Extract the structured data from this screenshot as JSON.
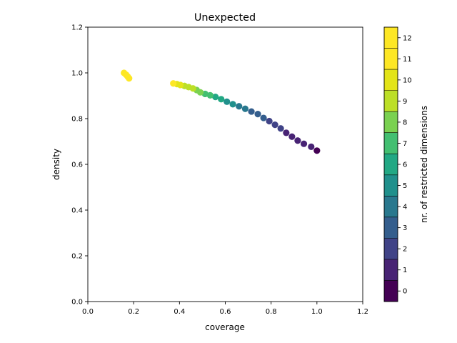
{
  "chart_data": {
    "type": "scatter",
    "title": "Unexpected",
    "xlabel": "coverage",
    "ylabel": "density",
    "xlim": [
      0.0,
      1.2
    ],
    "ylim": [
      0.0,
      1.2
    ],
    "xticks": [
      "0.0",
      "0.2",
      "0.4",
      "0.6",
      "0.8",
      "1.0",
      "1.2"
    ],
    "yticks": [
      "0.0",
      "0.2",
      "0.4",
      "0.6",
      "0.8",
      "1.0",
      "1.2"
    ],
    "grid": false,
    "colorbar": {
      "label": "nr. of restricted dimensions",
      "ticks": [
        "0",
        "1",
        "2",
        "3",
        "4",
        "5",
        "6",
        "7",
        "8",
        "9",
        "10",
        "11",
        "12"
      ],
      "colormap": "viridis",
      "colors": [
        "#440154",
        "#482374",
        "#404387",
        "#345e8d",
        "#29788e",
        "#20908c",
        "#22a884",
        "#43bf71",
        "#7ad151",
        "#bcdf27",
        "#e3e418",
        "#fde725",
        "#fde725"
      ]
    },
    "points": [
      {
        "x": 1.0,
        "y": 0.66,
        "dims": 0
      },
      {
        "x": 0.975,
        "y": 0.677,
        "dims": 1
      },
      {
        "x": 0.943,
        "y": 0.69,
        "dims": 1
      },
      {
        "x": 0.916,
        "y": 0.704,
        "dims": 1
      },
      {
        "x": 0.891,
        "y": 0.721,
        "dims": 1
      },
      {
        "x": 0.866,
        "y": 0.738,
        "dims": 1
      },
      {
        "x": 0.842,
        "y": 0.757,
        "dims": 2
      },
      {
        "x": 0.817,
        "y": 0.773,
        "dims": 2
      },
      {
        "x": 0.792,
        "y": 0.789,
        "dims": 2
      },
      {
        "x": 0.767,
        "y": 0.803,
        "dims": 3
      },
      {
        "x": 0.742,
        "y": 0.82,
        "dims": 3
      },
      {
        "x": 0.714,
        "y": 0.831,
        "dims": 3
      },
      {
        "x": 0.687,
        "y": 0.843,
        "dims": 4
      },
      {
        "x": 0.66,
        "y": 0.854,
        "dims": 4
      },
      {
        "x": 0.633,
        "y": 0.863,
        "dims": 5
      },
      {
        "x": 0.607,
        "y": 0.874,
        "dims": 5
      },
      {
        "x": 0.582,
        "y": 0.885,
        "dims": 6
      },
      {
        "x": 0.557,
        "y": 0.895,
        "dims": 6
      },
      {
        "x": 0.534,
        "y": 0.902,
        "dims": 7
      },
      {
        "x": 0.512,
        "y": 0.908,
        "dims": 7
      },
      {
        "x": 0.491,
        "y": 0.915,
        "dims": 8
      },
      {
        "x": 0.475,
        "y": 0.925,
        "dims": 8
      },
      {
        "x": 0.459,
        "y": 0.932,
        "dims": 9
      },
      {
        "x": 0.44,
        "y": 0.938,
        "dims": 9
      },
      {
        "x": 0.422,
        "y": 0.943,
        "dims": 9
      },
      {
        "x": 0.404,
        "y": 0.947,
        "dims": 10
      },
      {
        "x": 0.389,
        "y": 0.951,
        "dims": 10
      },
      {
        "x": 0.373,
        "y": 0.954,
        "dims": 11
      },
      {
        "x": 0.18,
        "y": 0.976,
        "dims": 12
      },
      {
        "x": 0.174,
        "y": 0.984,
        "dims": 12
      },
      {
        "x": 0.167,
        "y": 0.992,
        "dims": 12
      },
      {
        "x": 0.158,
        "y": 1.0,
        "dims": 12
      }
    ]
  }
}
